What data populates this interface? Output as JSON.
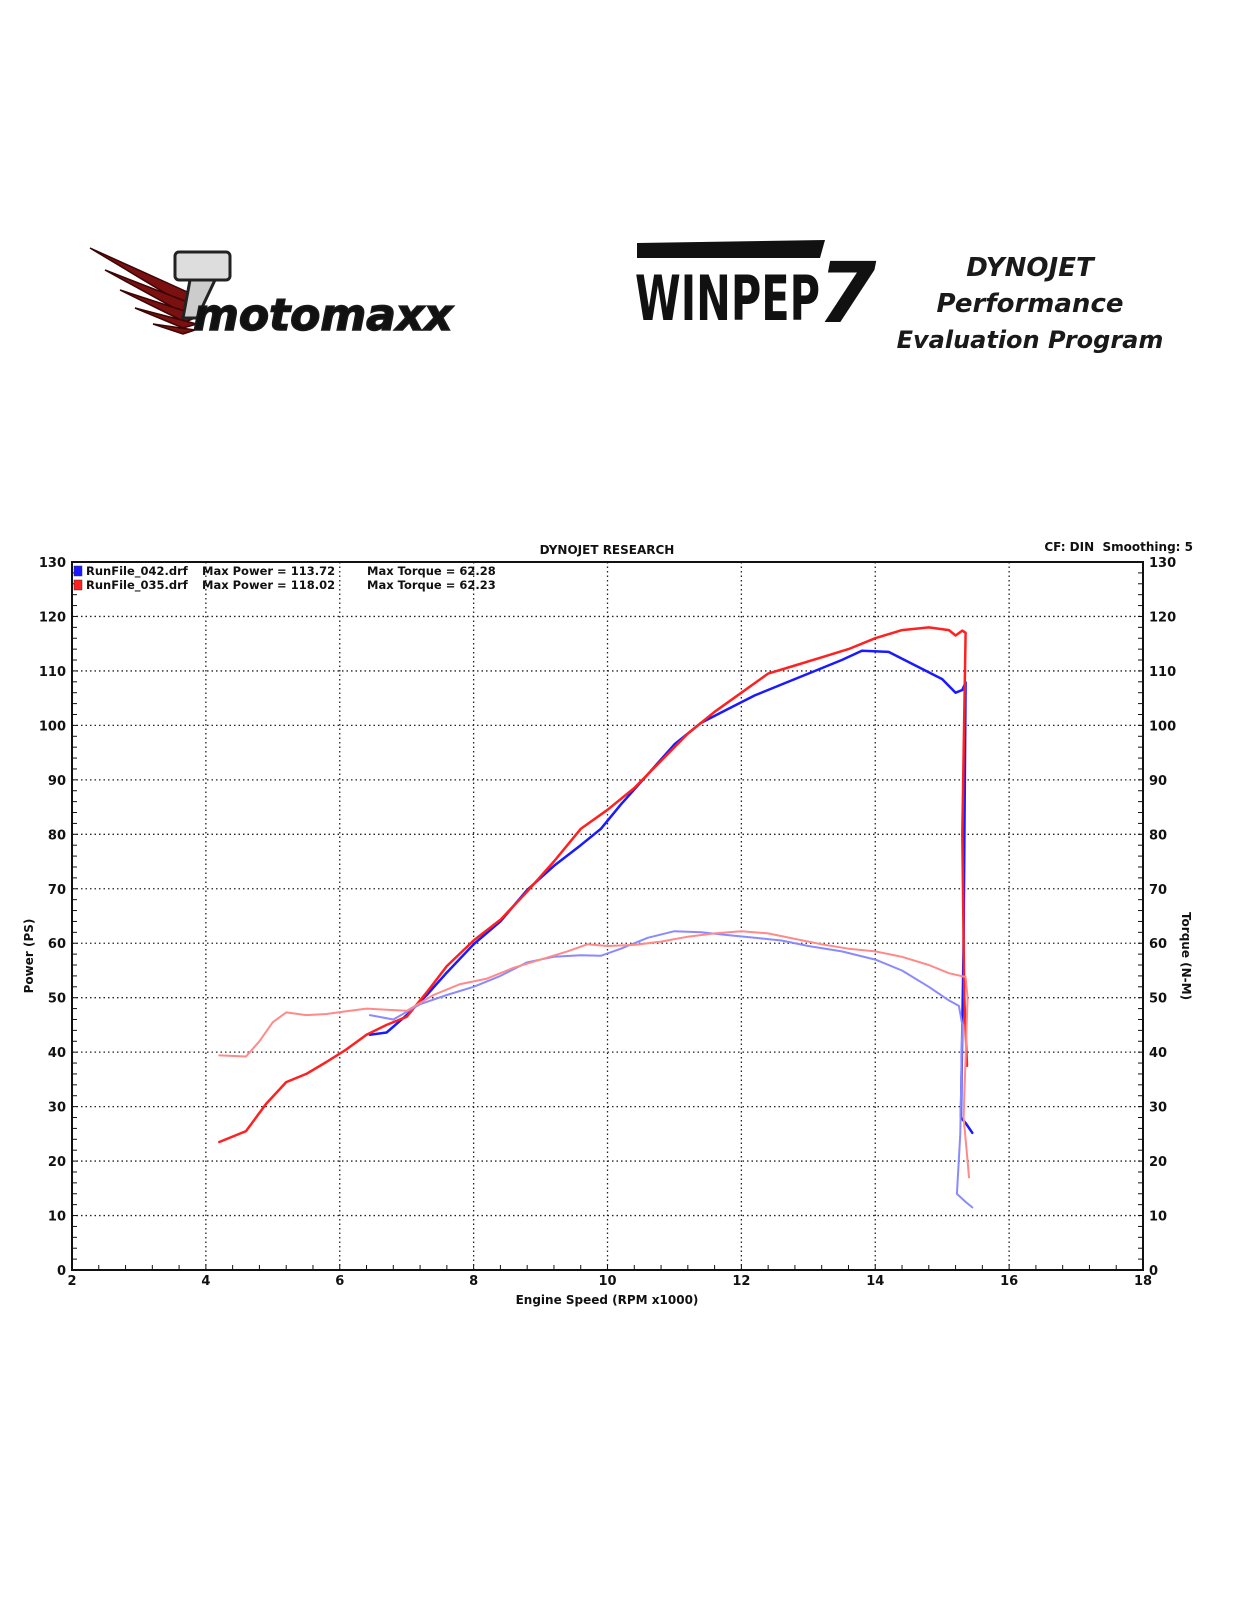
{
  "brand": {
    "left_logo_text": "motomaxx",
    "right_logo_text": "WINPEP",
    "right_logo_badge": "DynoJet",
    "right_logo_number": "7",
    "tagline_line1": "DYNOJET Performance",
    "tagline_line2": "Evaluation Program"
  },
  "chart_data": {
    "type": "line",
    "title": "DYNOJET RESEARCH",
    "settings_text": "CF: DIN  Smoothing: 5",
    "xlabel": "Engine Speed (RPM x1000)",
    "ylabel_left": "Power (PS)",
    "ylabel_right": "Torque (N-M)",
    "xlim": [
      2,
      18
    ],
    "ylim": [
      0,
      130
    ],
    "xticks": [
      2,
      4,
      6,
      8,
      10,
      12,
      14,
      16,
      18
    ],
    "yticks": [
      0,
      10,
      20,
      30,
      40,
      50,
      60,
      70,
      80,
      90,
      100,
      110,
      120,
      130
    ],
    "grid": true,
    "legend": [
      {
        "file": "RunFile_042.drf",
        "power_text": "Max Power = 113.72",
        "torque_text": "Max Torque = 62.28",
        "color": "#1a1aff"
      },
      {
        "file": "RunFile_035.drf",
        "power_text": "Max Power = 118.02",
        "torque_text": "Max Torque = 62.23",
        "color": "#ff2020"
      }
    ],
    "series": [
      {
        "file": "RunFile_042.drf",
        "measure": "power",
        "color": "#1a1aff",
        "stroke": 2.5,
        "points": [
          [
            6.45,
            43.2
          ],
          [
            6.7,
            43.6
          ],
          [
            7.0,
            46.8
          ],
          [
            7.3,
            50.5
          ],
          [
            7.6,
            54.6
          ],
          [
            8.0,
            59.8
          ],
          [
            8.4,
            64.0
          ],
          [
            8.8,
            69.8
          ],
          [
            9.2,
            74.2
          ],
          [
            9.6,
            78.0
          ],
          [
            9.9,
            81.0
          ],
          [
            10.2,
            85.5
          ],
          [
            10.6,
            91.0
          ],
          [
            11.0,
            96.5
          ],
          [
            11.4,
            100.5
          ],
          [
            11.8,
            103.0
          ],
          [
            12.2,
            105.5
          ],
          [
            12.6,
            107.5
          ],
          [
            13.0,
            109.5
          ],
          [
            13.5,
            112.0
          ],
          [
            13.8,
            113.7
          ],
          [
            14.2,
            113.5
          ],
          [
            14.6,
            111.0
          ],
          [
            15.0,
            108.5
          ],
          [
            15.2,
            106.0
          ],
          [
            15.3,
            106.5
          ],
          [
            15.35,
            107.9
          ],
          [
            15.32,
            60.0
          ],
          [
            15.28,
            28.0
          ],
          [
            15.35,
            27.0
          ],
          [
            15.45,
            25.2
          ]
        ]
      },
      {
        "file": "RunFile_035.drf",
        "measure": "power",
        "color": "#ff2020",
        "stroke": 2.5,
        "points": [
          [
            4.2,
            23.5
          ],
          [
            4.6,
            25.5
          ],
          [
            4.9,
            30.5
          ],
          [
            5.2,
            34.5
          ],
          [
            5.5,
            36.0
          ],
          [
            5.8,
            38.2
          ],
          [
            6.1,
            40.5
          ],
          [
            6.4,
            43.2
          ],
          [
            6.7,
            45.0
          ],
          [
            7.0,
            46.5
          ],
          [
            7.3,
            51.0
          ],
          [
            7.6,
            55.8
          ],
          [
            8.0,
            60.5
          ],
          [
            8.4,
            64.3
          ],
          [
            8.8,
            69.5
          ],
          [
            9.2,
            75.0
          ],
          [
            9.6,
            81.0
          ],
          [
            10.0,
            84.5
          ],
          [
            10.4,
            88.5
          ],
          [
            10.8,
            93.5
          ],
          [
            11.2,
            98.5
          ],
          [
            11.6,
            102.5
          ],
          [
            12.0,
            106.0
          ],
          [
            12.4,
            109.5
          ],
          [
            12.8,
            111.0
          ],
          [
            13.2,
            112.5
          ],
          [
            13.6,
            114.0
          ],
          [
            14.0,
            116.0
          ],
          [
            14.4,
            117.5
          ],
          [
            14.8,
            118.0
          ],
          [
            15.1,
            117.5
          ],
          [
            15.2,
            116.5
          ],
          [
            15.3,
            117.4
          ],
          [
            15.35,
            117.0
          ],
          [
            15.3,
            80.0
          ],
          [
            15.33,
            50.0
          ],
          [
            15.37,
            37.5
          ]
        ]
      },
      {
        "file": "RunFile_042.drf",
        "measure": "torque",
        "color": "#8a8aff",
        "stroke": 2,
        "points": [
          [
            6.45,
            46.8
          ],
          [
            6.8,
            46.0
          ],
          [
            7.2,
            48.8
          ],
          [
            7.6,
            50.5
          ],
          [
            8.0,
            52.0
          ],
          [
            8.4,
            54.0
          ],
          [
            8.8,
            56.5
          ],
          [
            9.2,
            57.5
          ],
          [
            9.6,
            57.8
          ],
          [
            9.9,
            57.7
          ],
          [
            10.2,
            59.0
          ],
          [
            10.6,
            61.0
          ],
          [
            11.0,
            62.2
          ],
          [
            11.4,
            62.0
          ],
          [
            11.8,
            61.5
          ],
          [
            12.2,
            61.0
          ],
          [
            12.6,
            60.5
          ],
          [
            13.0,
            59.5
          ],
          [
            13.5,
            58.5
          ],
          [
            14.0,
            57.0
          ],
          [
            14.4,
            55.0
          ],
          [
            14.8,
            52.0
          ],
          [
            15.1,
            49.5
          ],
          [
            15.25,
            48.5
          ],
          [
            15.3,
            45.0
          ],
          [
            15.27,
            25.0
          ],
          [
            15.22,
            14.0
          ],
          [
            15.35,
            12.5
          ],
          [
            15.45,
            11.5
          ]
        ]
      },
      {
        "file": "RunFile_035.drf",
        "measure": "torque",
        "color": "#ff8a8a",
        "stroke": 2,
        "points": [
          [
            4.2,
            39.4
          ],
          [
            4.6,
            39.2
          ],
          [
            4.8,
            42.0
          ],
          [
            5.0,
            45.5
          ],
          [
            5.2,
            47.3
          ],
          [
            5.5,
            46.8
          ],
          [
            5.8,
            47.0
          ],
          [
            6.1,
            47.5
          ],
          [
            6.4,
            48.0
          ],
          [
            6.7,
            47.8
          ],
          [
            7.0,
            47.6
          ],
          [
            7.4,
            50.5
          ],
          [
            7.8,
            52.5
          ],
          [
            8.2,
            53.5
          ],
          [
            8.6,
            55.5
          ],
          [
            9.0,
            57.0
          ],
          [
            9.4,
            58.5
          ],
          [
            9.7,
            59.8
          ],
          [
            10.0,
            59.5
          ],
          [
            10.4,
            59.7
          ],
          [
            10.8,
            60.3
          ],
          [
            11.2,
            61.2
          ],
          [
            11.6,
            61.8
          ],
          [
            12.0,
            62.2
          ],
          [
            12.4,
            61.8
          ],
          [
            12.8,
            60.8
          ],
          [
            13.2,
            59.8
          ],
          [
            13.6,
            59.0
          ],
          [
            14.0,
            58.5
          ],
          [
            14.4,
            57.5
          ],
          [
            14.8,
            56.0
          ],
          [
            15.1,
            54.5
          ],
          [
            15.35,
            53.8
          ],
          [
            15.38,
            50.0
          ],
          [
            15.32,
            28.0
          ],
          [
            15.38,
            20.0
          ],
          [
            15.4,
            17.0
          ]
        ]
      }
    ]
  }
}
